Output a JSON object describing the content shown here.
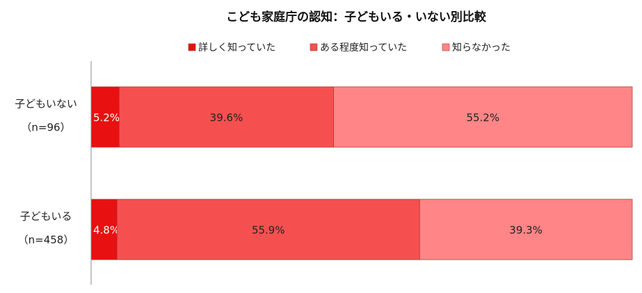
{
  "chart_data": {
    "type": "bar",
    "orientation": "horizontal",
    "stacked": true,
    "percent_stacked": true,
    "title": "こども家庭庁の認知：子どもいる・いない別比較",
    "xlabel": "",
    "ylabel": "",
    "xlim": [
      0,
      100
    ],
    "grid": false,
    "legend_position": "top",
    "categories": [
      {
        "line1": "子どもいない",
        "line2": "（n=96）"
      },
      {
        "line1": "子どもいる",
        "line2": "（n=458）"
      }
    ],
    "series": [
      {
        "name": "詳しく知っていた",
        "values": [
          5.2,
          4.8
        ],
        "labels": [
          "5.2%",
          "4.8%"
        ],
        "color": "#e81010",
        "label_color": "#ffffff"
      },
      {
        "name": "ある程度知っていた",
        "values": [
          39.6,
          55.9
        ],
        "labels": [
          "39.6%",
          "55.9%"
        ],
        "color": "#f5504f",
        "label_color": "#222222"
      },
      {
        "name": "知らなかった",
        "values": [
          55.2,
          39.3
        ],
        "labels": [
          "55.2%",
          "39.3%"
        ],
        "color": "#ff8587",
        "label_color": "#222222"
      }
    ]
  }
}
